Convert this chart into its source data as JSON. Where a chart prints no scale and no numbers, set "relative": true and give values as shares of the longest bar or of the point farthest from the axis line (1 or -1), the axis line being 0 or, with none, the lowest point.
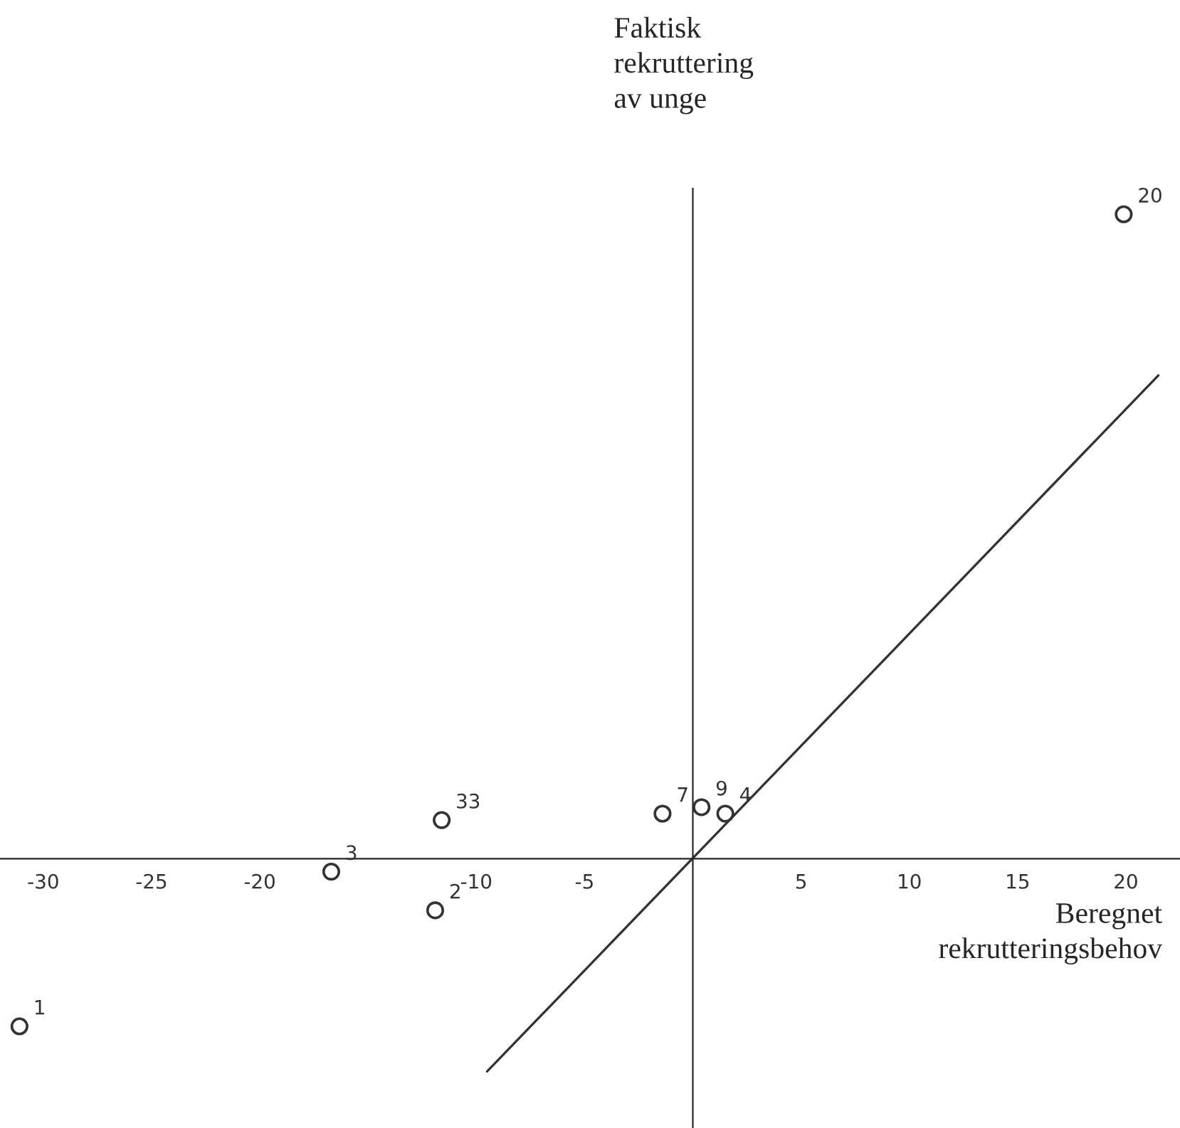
{
  "chart_data": {
    "type": "scatter",
    "xlabel": "Beregnet\nrekrutteringsbehov",
    "ylabel": "Faktisk\nrekruttering\nav unge",
    "relative": true,
    "x": [
      -31.1,
      -16.7,
      -11.9,
      -11.6,
      -1.4,
      0.4,
      1.5,
      19.9
    ],
    "series": [
      {
        "color": "#333333",
        "marker": "circle",
        "values": [
          -0.26,
          -0.02,
          -0.08,
          0.06,
          0.07,
          0.08,
          0.07,
          1
        ]
      },
      {
        "type": "line",
        "color": "#333333",
        "x": [
          -9.5,
          21.5
        ],
        "values": [
          -0.33,
          0.75
        ]
      }
    ],
    "annotations": [
      {
        "text": "1",
        "x": -31.1,
        "y": -0.26
      },
      {
        "text": "3",
        "x": -16.7,
        "y": -0.02
      },
      {
        "text": "2",
        "x": -11.9,
        "y": -0.08
      },
      {
        "text": "33",
        "x": -11.6,
        "y": 0.06
      },
      {
        "text": "7",
        "x": -1.4,
        "y": 0.07
      },
      {
        "text": "9",
        "x": 0.4,
        "y": 0.08
      },
      {
        "text": "4",
        "x": 1.5,
        "y": 0.07
      },
      {
        "text": "20",
        "x": 19.9,
        "y": 1
      }
    ],
    "xlim": [
      -32,
      22.5
    ],
    "xticks": [
      -30,
      -25,
      -20,
      -10,
      -5,
      5,
      10,
      15,
      20
    ],
    "tick_labels": "x"
  }
}
